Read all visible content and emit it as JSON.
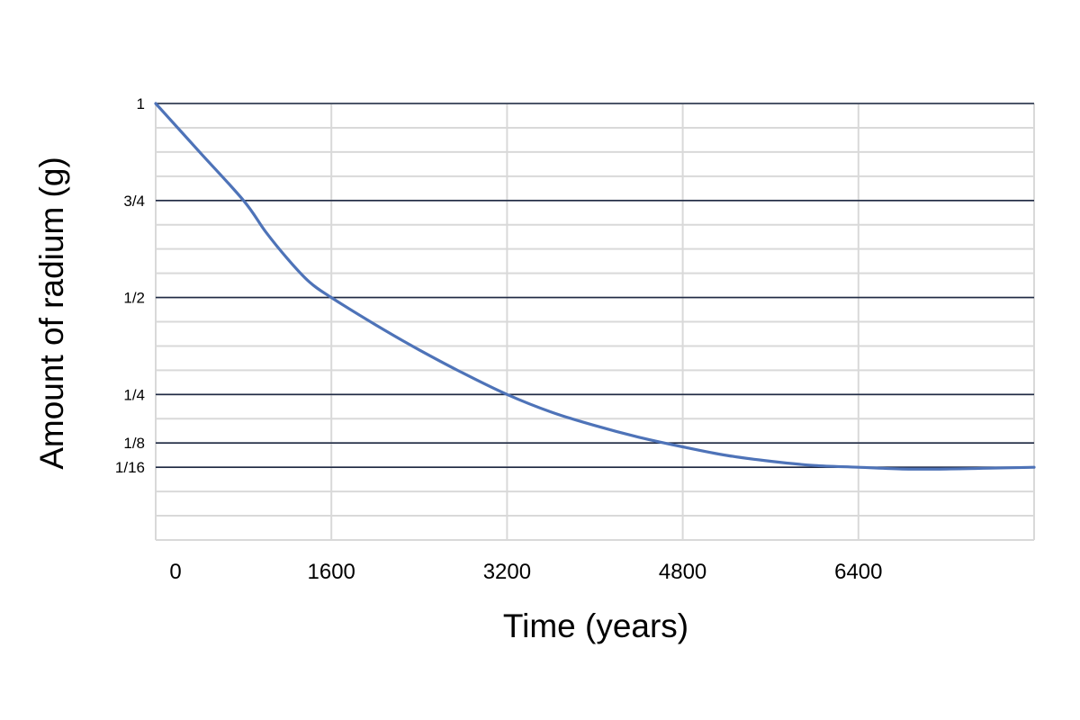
{
  "chart_data": {
    "type": "line",
    "xlabel": "Time (years)",
    "ylabel": "Amount of radium (g)",
    "xlim": [
      0,
      8000
    ],
    "ylim": [
      -0.125,
      1
    ],
    "x_ticks": [
      {
        "value": 0,
        "label": "0"
      },
      {
        "value": 1600,
        "label": "1600"
      },
      {
        "value": 3200,
        "label": "3200"
      },
      {
        "value": 4800,
        "label": "4800"
      },
      {
        "value": 6400,
        "label": "6400"
      }
    ],
    "y_ticks": [
      {
        "value": 1,
        "label": "1"
      },
      {
        "value": 0.75,
        "label": "3/4"
      },
      {
        "value": 0.5,
        "label": "1/2"
      },
      {
        "value": 0.25,
        "label": "1/4"
      },
      {
        "value": 0.125,
        "label": "1/8"
      },
      {
        "value": 0.0625,
        "label": "1/16"
      }
    ],
    "grid": true,
    "line_color": "#4e73b8",
    "series": [
      {
        "x": [
          0,
          400,
          800,
          1000,
          1200,
          1400,
          1600,
          2000,
          2400,
          2800,
          3200,
          3600,
          4000,
          4400,
          4800,
          5200,
          5600,
          6000,
          6400,
          6800,
          7200,
          7600,
          8000
        ],
        "values": [
          1,
          0.875,
          0.75,
          0.67,
          0.6,
          0.54,
          0.5,
          0.43,
          0.365,
          0.305,
          0.25,
          0.205,
          0.17,
          0.14,
          0.115,
          0.093,
          0.078,
          0.067,
          0.0625,
          0.058,
          0.058,
          0.06,
          0.0625
        ]
      }
    ]
  }
}
